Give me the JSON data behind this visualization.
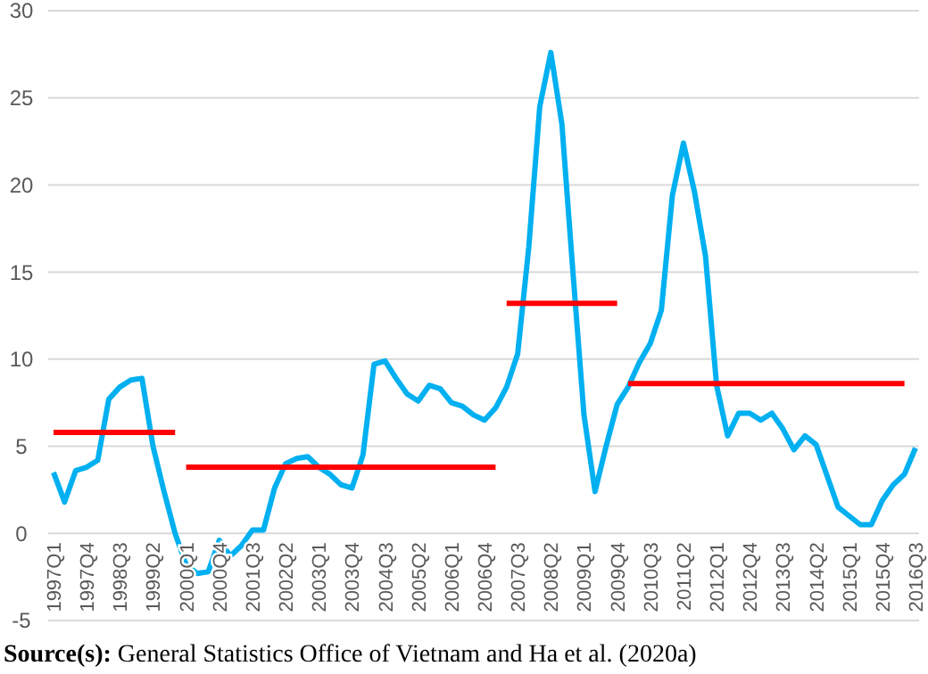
{
  "chart_data": {
    "type": "line",
    "categories": [
      "1997Q1",
      null,
      null,
      "1997Q4",
      null,
      null,
      "1998Q3",
      null,
      null,
      "1999Q2",
      null,
      null,
      "2000Q1",
      null,
      null,
      "2000Q4",
      null,
      null,
      "2001Q3",
      null,
      null,
      "2002Q2",
      null,
      null,
      "2003Q1",
      null,
      null,
      "2003Q4",
      null,
      null,
      "2004Q3",
      null,
      null,
      "2005Q2",
      null,
      null,
      "2006Q1",
      null,
      null,
      "2006Q4",
      null,
      null,
      "2007Q3",
      null,
      null,
      "2008Q2",
      null,
      null,
      "2009Q1",
      null,
      null,
      "2009Q4",
      null,
      null,
      "2010Q3",
      null,
      null,
      "2011Q2",
      null,
      null,
      "2012Q1",
      null,
      null,
      "2012Q4",
      null,
      null,
      "2013Q3",
      null,
      null,
      "2014Q2",
      null,
      null,
      "2015Q1",
      null,
      null,
      "2015Q4",
      null,
      null,
      "2016Q3"
    ],
    "series": [
      {
        "color": "#00b0f0",
        "values": [
          3.5,
          1.8,
          3.6,
          3.8,
          4.2,
          7.7,
          8.4,
          8.8,
          8.9,
          5.0,
          2.4,
          0,
          -1.8,
          -2.3,
          -2.2,
          -0.4,
          -1.3,
          -0.7,
          0.2,
          0.2,
          2.6,
          4.0,
          4.3,
          4.4,
          3.8,
          3.4,
          2.8,
          2.6,
          4.5,
          9.7,
          9.9,
          8.9,
          8.0,
          7.6,
          8.5,
          8.3,
          7.5,
          7.3,
          6.8,
          6.5,
          7.2,
          8.4,
          10.3,
          16.4,
          24.5,
          27.6,
          23.5,
          15,
          6.8,
          2.4,
          5.0,
          7.4,
          8.4,
          9.8,
          10.9,
          12.8,
          19.4,
          22.4,
          19.6,
          15.9,
          8.5,
          5.6,
          6.9,
          6.9,
          6.5,
          6.9,
          6.0,
          4.8,
          5.6,
          5.1,
          3.3,
          1.5,
          1.0,
          0.5,
          0.5,
          1.9,
          2.8,
          3.4,
          4.9
        ]
      },
      {
        "color": "#ff0000",
        "values": [
          5.8,
          5.8,
          5.8,
          5.8,
          5.8,
          5.8,
          5.8,
          5.8,
          5.8,
          5.8,
          5.8,
          5.8,
          null,
          null,
          null,
          null,
          null,
          null,
          null,
          null,
          null,
          null,
          null,
          null,
          null,
          null,
          null,
          null,
          null,
          null,
          null,
          null,
          null,
          null,
          null,
          null,
          null,
          null,
          null,
          null,
          null,
          null,
          null,
          null,
          null,
          null,
          null,
          null,
          null,
          null,
          null,
          null,
          null,
          null,
          null,
          null,
          null,
          null,
          null,
          null,
          null,
          null,
          null,
          null,
          null,
          null,
          null,
          null,
          null,
          null,
          null,
          null,
          null,
          null,
          null,
          null,
          null,
          null,
          null
        ]
      },
      {
        "color": "#ff0000",
        "values": [
          null,
          null,
          null,
          null,
          null,
          null,
          null,
          null,
          null,
          null,
          null,
          null,
          3.8,
          3.8,
          3.8,
          3.8,
          3.8,
          3.8,
          3.8,
          3.8,
          3.8,
          3.8,
          3.8,
          3.8,
          3.8,
          3.8,
          3.8,
          3.8,
          3.8,
          3.8,
          3.8,
          3.8,
          3.8,
          3.8,
          3.8,
          3.8,
          3.8,
          3.8,
          3.8,
          3.8,
          3.8,
          null,
          null,
          null,
          null,
          null,
          null,
          null,
          null,
          null,
          null,
          null,
          null,
          null,
          null,
          null,
          null,
          null,
          null,
          null,
          null,
          null,
          null,
          null,
          null,
          null,
          null,
          null,
          null,
          null,
          null,
          null,
          null,
          null,
          null,
          null,
          null,
          null,
          null
        ]
      },
      {
        "color": "#ff0000",
        "values": [
          null,
          null,
          null,
          null,
          null,
          null,
          null,
          null,
          null,
          null,
          null,
          null,
          null,
          null,
          null,
          null,
          null,
          null,
          null,
          null,
          null,
          null,
          null,
          null,
          null,
          null,
          null,
          null,
          null,
          null,
          null,
          null,
          null,
          null,
          null,
          null,
          null,
          null,
          null,
          null,
          null,
          13.2,
          13.2,
          13.2,
          13.2,
          13.2,
          13.2,
          13.2,
          13.2,
          13.2,
          13.2,
          13.2,
          null,
          null,
          null,
          null,
          null,
          null,
          null,
          null,
          null,
          null,
          null,
          null,
          null,
          null,
          null,
          null,
          null,
          null,
          null,
          null,
          null,
          null,
          null,
          null,
          null,
          null,
          null
        ]
      },
      {
        "color": "#ff0000",
        "values": [
          null,
          null,
          null,
          null,
          null,
          null,
          null,
          null,
          null,
          null,
          null,
          null,
          null,
          null,
          null,
          null,
          null,
          null,
          null,
          null,
          null,
          null,
          null,
          null,
          null,
          null,
          null,
          null,
          null,
          null,
          null,
          null,
          null,
          null,
          null,
          null,
          null,
          null,
          null,
          null,
          null,
          null,
          null,
          null,
          null,
          null,
          null,
          null,
          null,
          null,
          null,
          null,
          8.6,
          8.6,
          8.6,
          8.6,
          8.6,
          8.6,
          8.6,
          8.6,
          8.6,
          8.6,
          8.6,
          8.6,
          8.6,
          8.6,
          8.6,
          8.6,
          8.6,
          8.6,
          8.6,
          8.6,
          8.6,
          8.6,
          8.6,
          8.6,
          8.6,
          8.6,
          null
        ]
      }
    ],
    "ylim": [
      -5,
      30
    ],
    "yticks": [
      -5,
      0,
      5,
      10,
      15,
      20,
      25,
      30
    ],
    "grid": "y",
    "annotations": [
      "Source(s): General Statistics Office of Vietnam and Ha et al. (2020a)"
    ]
  }
}
